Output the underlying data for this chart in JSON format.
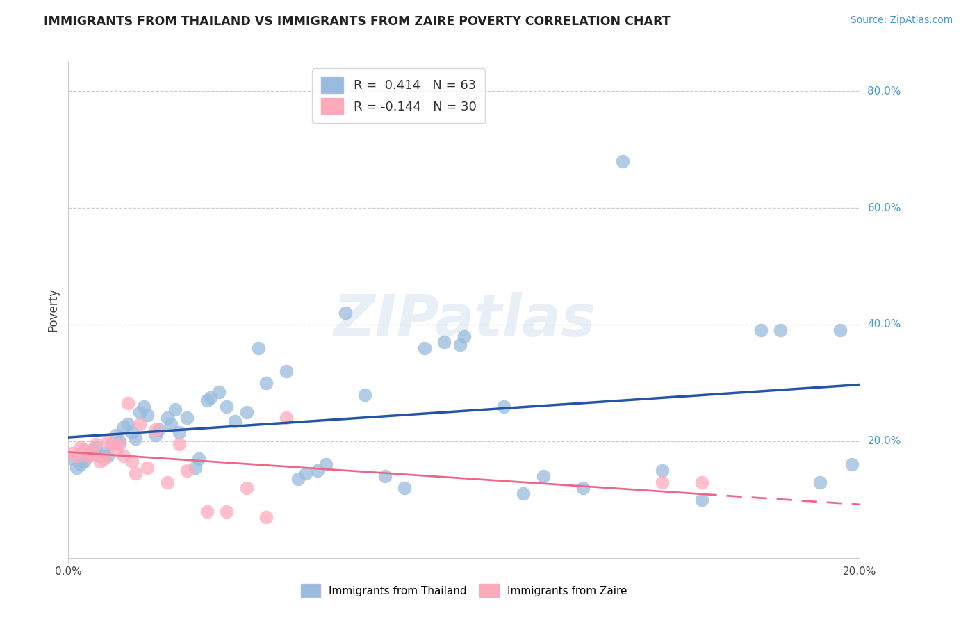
{
  "title": "IMMIGRANTS FROM THAILAND VS IMMIGRANTS FROM ZAIRE POVERTY CORRELATION CHART",
  "source": "Source: ZipAtlas.com",
  "ylabel": "Poverty",
  "xlim": [
    0.0,
    0.2
  ],
  "ylim": [
    0.0,
    0.85
  ],
  "ytick_vals": [
    0.2,
    0.4,
    0.6,
    0.8
  ],
  "ytick_labels": [
    "20.0%",
    "40.0%",
    "60.0%",
    "80.0%"
  ],
  "xtick_vals": [
    0.0,
    0.2
  ],
  "xtick_labels": [
    "0.0%",
    "20.0%"
  ],
  "legend_r1_text": "R =  0.414   N = 63",
  "legend_r2_text": "R = -0.144   N = 30",
  "legend_label1": "Immigrants from Thailand",
  "legend_label2": "Immigrants from Zaire",
  "color_thailand": "#99BBDD",
  "color_zaire": "#FFAABB",
  "color_thailand_line": "#2255AA",
  "color_zaire_line": "#EE6688",
  "color_label_blue": "#4499CC",
  "watermark_text": "ZIPatlas",
  "background_color": "#FFFFFF",
  "thailand_x": [
    0.001,
    0.002,
    0.003,
    0.004,
    0.005,
    0.005,
    0.006,
    0.007,
    0.008,
    0.009,
    0.01,
    0.011,
    0.012,
    0.013,
    0.014,
    0.015,
    0.016,
    0.017,
    0.018,
    0.019,
    0.02,
    0.022,
    0.023,
    0.025,
    0.026,
    0.027,
    0.028,
    0.03,
    0.032,
    0.033,
    0.035,
    0.036,
    0.038,
    0.04,
    0.042,
    0.045,
    0.048,
    0.05,
    0.055,
    0.058,
    0.06,
    0.063,
    0.065,
    0.07,
    0.075,
    0.08,
    0.085,
    0.09,
    0.095,
    0.1,
    0.11,
    0.115,
    0.12,
    0.13,
    0.14,
    0.15,
    0.16,
    0.175,
    0.18,
    0.19,
    0.195,
    0.198,
    0.099
  ],
  "thailand_y": [
    0.17,
    0.155,
    0.16,
    0.165,
    0.175,
    0.18,
    0.185,
    0.19,
    0.175,
    0.18,
    0.175,
    0.195,
    0.21,
    0.2,
    0.225,
    0.23,
    0.215,
    0.205,
    0.25,
    0.26,
    0.245,
    0.21,
    0.22,
    0.24,
    0.23,
    0.255,
    0.215,
    0.24,
    0.155,
    0.17,
    0.27,
    0.275,
    0.285,
    0.26,
    0.235,
    0.25,
    0.36,
    0.3,
    0.32,
    0.135,
    0.145,
    0.15,
    0.16,
    0.42,
    0.28,
    0.14,
    0.12,
    0.36,
    0.37,
    0.38,
    0.26,
    0.11,
    0.14,
    0.12,
    0.68,
    0.15,
    0.1,
    0.39,
    0.39,
    0.13,
    0.39,
    0.16,
    0.365
  ],
  "zaire_x": [
    0.001,
    0.002,
    0.003,
    0.004,
    0.005,
    0.006,
    0.007,
    0.008,
    0.009,
    0.01,
    0.011,
    0.012,
    0.013,
    0.014,
    0.015,
    0.016,
    0.017,
    0.018,
    0.02,
    0.022,
    0.025,
    0.028,
    0.03,
    0.035,
    0.04,
    0.045,
    0.05,
    0.055,
    0.15,
    0.16
  ],
  "zaire_y": [
    0.18,
    0.175,
    0.19,
    0.185,
    0.175,
    0.18,
    0.195,
    0.165,
    0.17,
    0.2,
    0.195,
    0.185,
    0.195,
    0.175,
    0.265,
    0.165,
    0.145,
    0.23,
    0.155,
    0.22,
    0.13,
    0.195,
    0.15,
    0.08,
    0.08,
    0.12,
    0.07,
    0.24,
    0.13,
    0.13
  ]
}
